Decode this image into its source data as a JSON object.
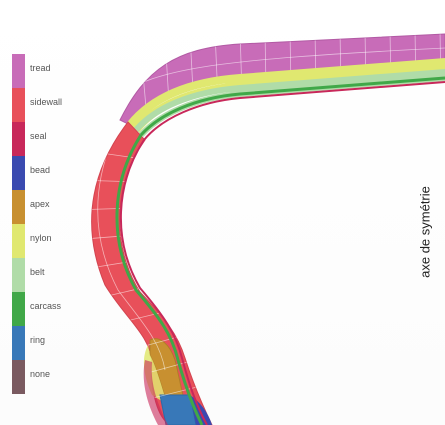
{
  "legend": {
    "items": [
      {
        "label": "tread",
        "color": "#c86cb8"
      },
      {
        "label": "sidewall",
        "color": "#e8505a"
      },
      {
        "label": "seal",
        "color": "#c8285a"
      },
      {
        "label": "bead",
        "color": "#3a4ab0"
      },
      {
        "label": "apex",
        "color": "#c89030"
      },
      {
        "label": "nylon",
        "color": "#e0e870"
      },
      {
        "label": "belt",
        "color": "#b0dca8"
      },
      {
        "label": "carcass",
        "color": "#40a848"
      },
      {
        "label": "ring",
        "color": "#3878b8"
      },
      {
        "label": "none",
        "color": "#7a5a60"
      }
    ]
  },
  "axis_label": "axe de symétrie"
}
